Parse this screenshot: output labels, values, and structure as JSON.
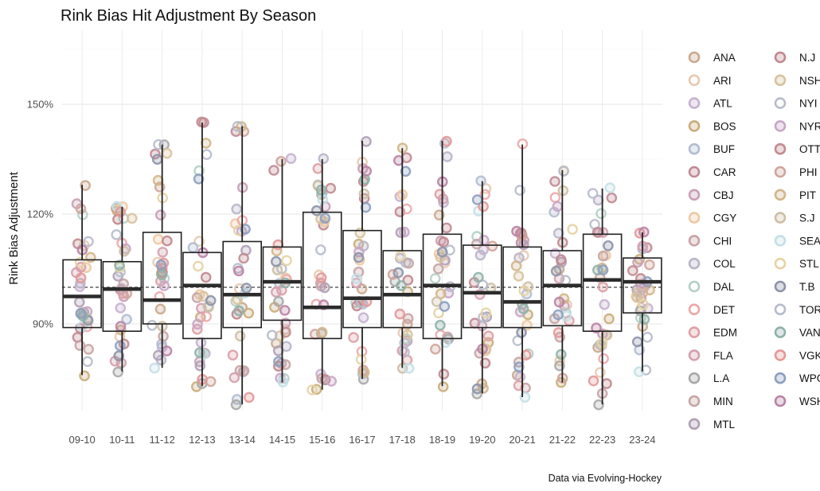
{
  "chart_data": {
    "type": "boxplot-jitter",
    "title": "Rink Bias Hit Adjustment By Season",
    "xlabel": "",
    "ylabel": "Rink Bias Adjustment",
    "caption": "Data via Evolving-Hockey",
    "categories": [
      "09-10",
      "10-11",
      "11-12",
      "12-13",
      "13-14",
      "14-15",
      "15-16",
      "16-17",
      "17-18",
      "18-19",
      "19-20",
      "20-21",
      "21-22",
      "22-23",
      "23-24"
    ],
    "y_ticks": [
      90,
      120,
      150
    ],
    "y_tick_labels": [
      "90%",
      "120%",
      "150%"
    ],
    "ylim": [
      68,
      168
    ],
    "reference_line": 100,
    "grid": true,
    "legend_position": "right",
    "boxes": [
      {
        "lo": 76,
        "q1": 89,
        "med": 97.5,
        "q3": 107.5,
        "hi": 128
      },
      {
        "lo": 77,
        "q1": 88,
        "med": 99.5,
        "q3": 107,
        "hi": 122
      },
      {
        "lo": 78,
        "q1": 90,
        "med": 96.5,
        "q3": 115,
        "hi": 139
      },
      {
        "lo": 73,
        "q1": 86,
        "med": 100.5,
        "q3": 109.5,
        "hi": 145
      },
      {
        "lo": 68,
        "q1": 89,
        "med": 98,
        "q3": 112.5,
        "hi": 144
      },
      {
        "lo": 74,
        "q1": 91,
        "med": 101.5,
        "q3": 111,
        "hi": 135
      },
      {
        "lo": 72,
        "q1": 86,
        "med": 94.5,
        "q3": 120.5,
        "hi": 135
      },
      {
        "lo": 75,
        "q1": 89,
        "med": 97,
        "q3": 115.5,
        "hi": 140
      },
      {
        "lo": 78,
        "q1": 89,
        "med": 98,
        "q3": 110,
        "hi": 138
      },
      {
        "lo": 73,
        "q1": 86,
        "med": 100.5,
        "q3": 114.5,
        "hi": 140
      },
      {
        "lo": 71,
        "q1": 89,
        "med": 98.5,
        "q3": 111.5,
        "hi": 129
      },
      {
        "lo": 70,
        "q1": 89,
        "med": 96,
        "q3": 111,
        "hi": 139
      },
      {
        "lo": 74,
        "q1": 89.5,
        "med": 100.5,
        "q3": 110,
        "hi": 132
      },
      {
        "lo": 68,
        "q1": 88,
        "med": 102,
        "q3": 114.5,
        "hi": 127
      },
      {
        "lo": 77,
        "q1": 93,
        "med": 101.5,
        "q3": 108,
        "hi": 115
      }
    ],
    "teams": [
      {
        "name": "ANA",
        "color": "#c9a98e",
        "fill": true
      },
      {
        "name": "ARI",
        "color": "#e7c9b0",
        "fill": false
      },
      {
        "name": "ATL",
        "color": "#c7b1cf",
        "fill": true
      },
      {
        "name": "BOS",
        "color": "#c9ad7a",
        "fill": true
      },
      {
        "name": "BUF",
        "color": "#b3bdd0",
        "fill": true
      },
      {
        "name": "CAR",
        "color": "#c08a95",
        "fill": true
      },
      {
        "name": "CBJ",
        "color": "#c8a0b6",
        "fill": true
      },
      {
        "name": "CGY",
        "color": "#eec9a3",
        "fill": true
      },
      {
        "name": "CHI",
        "color": "#c8a3a6",
        "fill": true
      },
      {
        "name": "COL",
        "color": "#b9b5c9",
        "fill": true
      },
      {
        "name": "DAL",
        "color": "#b4cfc4",
        "fill": false
      },
      {
        "name": "DET",
        "color": "#eea7a9",
        "fill": false
      },
      {
        "name": "EDM",
        "color": "#dda0a6",
        "fill": true
      },
      {
        "name": "FLA",
        "color": "#d4a0ae",
        "fill": true
      },
      {
        "name": "L.A",
        "color": "#a9a9a9",
        "fill": true
      },
      {
        "name": "MIN",
        "color": "#c4a6a4",
        "fill": true
      },
      {
        "name": "MTL",
        "color": "#b0a0b6",
        "fill": true
      },
      {
        "name": "N.J",
        "color": "#c0878e",
        "fill": true
      },
      {
        "name": "NSH",
        "color": "#d7c39e",
        "fill": true
      },
      {
        "name": "NYI",
        "color": "#b7bcc9",
        "fill": false
      },
      {
        "name": "NYR",
        "color": "#c8a6c6",
        "fill": true
      },
      {
        "name": "OTT",
        "color": "#c18c90",
        "fill": true
      },
      {
        "name": "PHI",
        "color": "#d0a59c",
        "fill": true
      },
      {
        "name": "PIT",
        "color": "#d2b68b",
        "fill": true
      },
      {
        "name": "S.J",
        "color": "#cdbfa5",
        "fill": true
      },
      {
        "name": "SEA",
        "color": "#c4dfe6",
        "fill": true
      },
      {
        "name": "STL",
        "color": "#e6d3a4",
        "fill": false
      },
      {
        "name": "T.B",
        "color": "#8d93a8",
        "fill": true
      },
      {
        "name": "TOR",
        "color": "#b7bbcc",
        "fill": false
      },
      {
        "name": "VAN",
        "color": "#8fb1a8",
        "fill": true
      },
      {
        "name": "VGK",
        "color": "#e39898",
        "fill": true
      },
      {
        "name": "WPG",
        "color": "#8d9fbf",
        "fill": true
      },
      {
        "name": "WSH",
        "color": "#b983a4",
        "fill": true
      }
    ]
  }
}
